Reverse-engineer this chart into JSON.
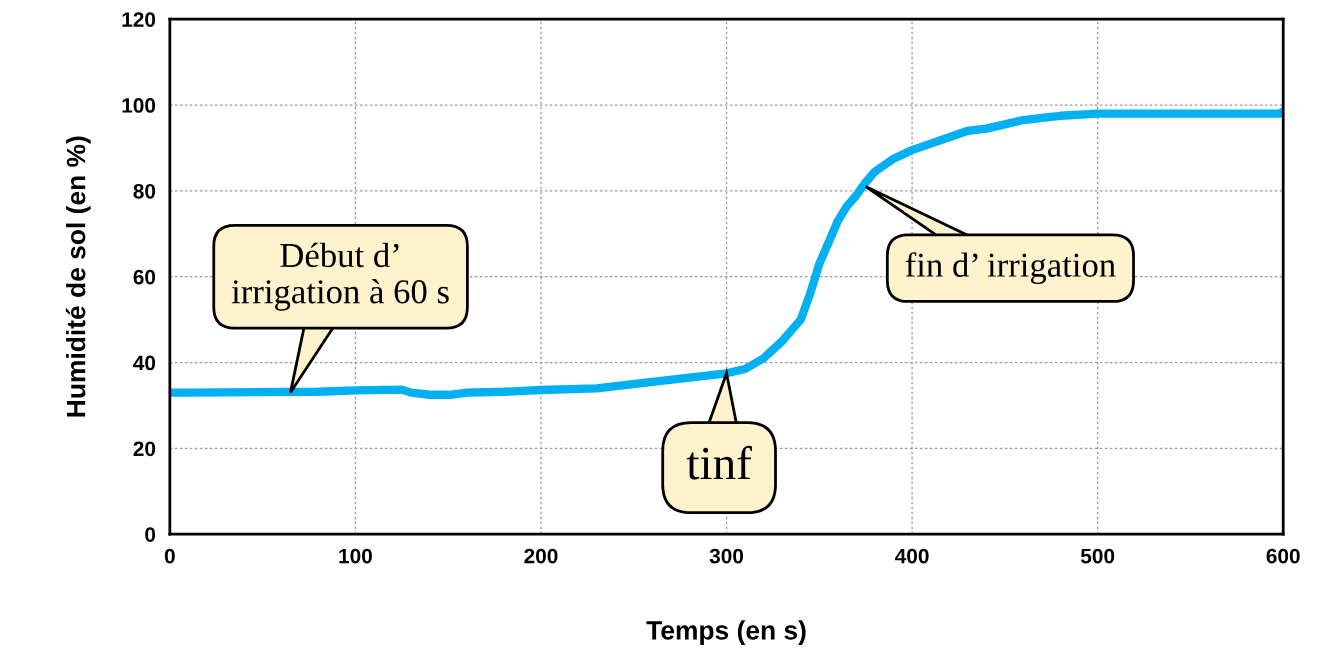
{
  "chart_data": {
    "type": "line",
    "xlabel": "Temps (en s)",
    "ylabel": "Humidité de sol (en %)",
    "xlim": [
      0,
      600
    ],
    "ylim": [
      0,
      120
    ],
    "xticks": [
      0,
      100,
      200,
      300,
      400,
      500,
      600
    ],
    "yticks": [
      0,
      20,
      40,
      60,
      80,
      100,
      120
    ],
    "grid": true,
    "legend": false,
    "marker": "none",
    "line_style": "solid",
    "series": [
      {
        "color": "#00b0f0",
        "x": [
          0,
          10,
          80,
          100,
          125,
          130,
          140,
          152,
          160,
          180,
          200,
          230,
          260,
          280,
          300,
          310,
          320,
          330,
          340,
          345,
          350,
          355,
          360,
          365,
          370,
          375,
          380,
          390,
          400,
          410,
          420,
          430,
          440,
          450,
          460,
          470,
          480,
          500,
          550,
          598,
          600
        ],
        "values": [
          33,
          33,
          33.2,
          33.5,
          33.7,
          33,
          32.5,
          32.5,
          33,
          33.2,
          33.6,
          34,
          35.5,
          36.5,
          37.5,
          38.5,
          41,
          45,
          50,
          56,
          63,
          68,
          73,
          76.5,
          79,
          82,
          84.5,
          87.5,
          89.5,
          91,
          92.5,
          94,
          94.5,
          95.5,
          96.5,
          97,
          97.5,
          98,
          98,
          98,
          98.5
        ]
      }
    ],
    "annotations": [
      {
        "text": "Début d’\nirrigation à 60 s",
        "x": 65,
        "y": 33
      },
      {
        "text": "tinf",
        "x": 300,
        "y": 37.5
      },
      {
        "text": "fin d’ irrigation",
        "x": 375,
        "y": 81
      }
    ]
  }
}
